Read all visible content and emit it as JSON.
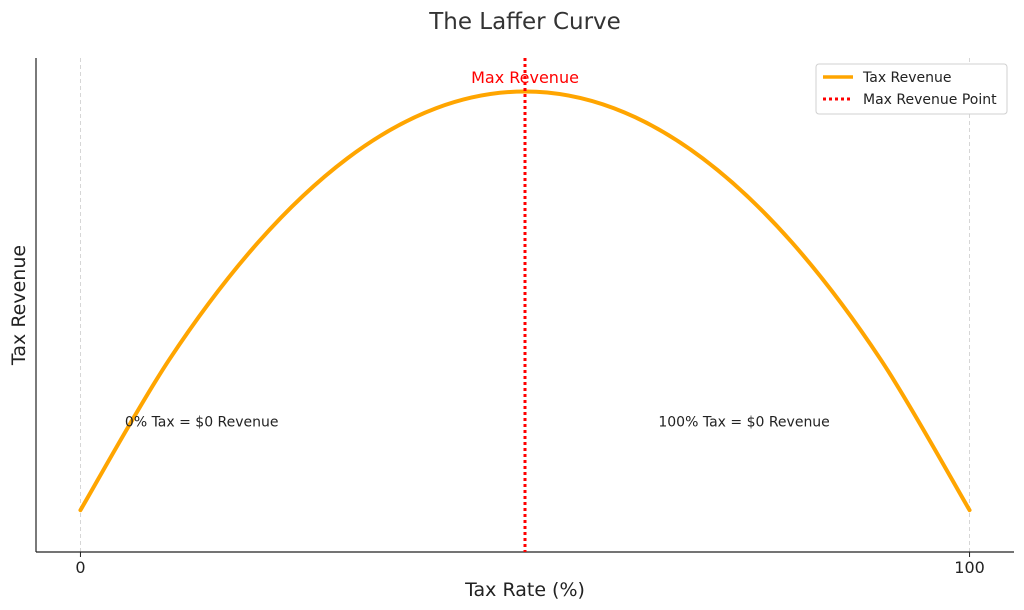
{
  "chart_data": {
    "type": "line",
    "title": "The Laffer Curve",
    "xlabel": "Tax Rate (%)",
    "ylabel": "Tax Revenue",
    "xlim": [
      -5,
      105
    ],
    "ylim": [
      -2.5,
      27
    ],
    "xticks": [
      0,
      100
    ],
    "xtick_labels": [
      "0",
      "100"
    ],
    "yticks": [],
    "grid": "vertical dashed at x ticks",
    "legend_position": "top-right",
    "colors": {
      "curve": "#FFA500",
      "max_line": "#FF0000",
      "grid": "#cccccc",
      "axis": "#222222"
    },
    "series": [
      {
        "name": "Tax Revenue",
        "style": "solid",
        "x": [
          0,
          10,
          20,
          30,
          40,
          50,
          60,
          70,
          80,
          90,
          100
        ],
        "y": [
          0,
          9,
          16,
          21,
          24,
          25,
          24,
          21,
          16,
          9,
          0
        ]
      }
    ],
    "reference_line": {
      "name": "Max Revenue Point",
      "orientation": "vertical",
      "x": 50,
      "style": "dotted"
    },
    "annotations": [
      {
        "text": "Max Revenue",
        "x": 50,
        "y": 25.5,
        "color": "#FF0000"
      },
      {
        "text": "0% Tax = $0 Revenue",
        "x": 5,
        "y": 5
      },
      {
        "text": "100% Tax = $0 Revenue",
        "x": 65,
        "y": 5
      }
    ]
  }
}
